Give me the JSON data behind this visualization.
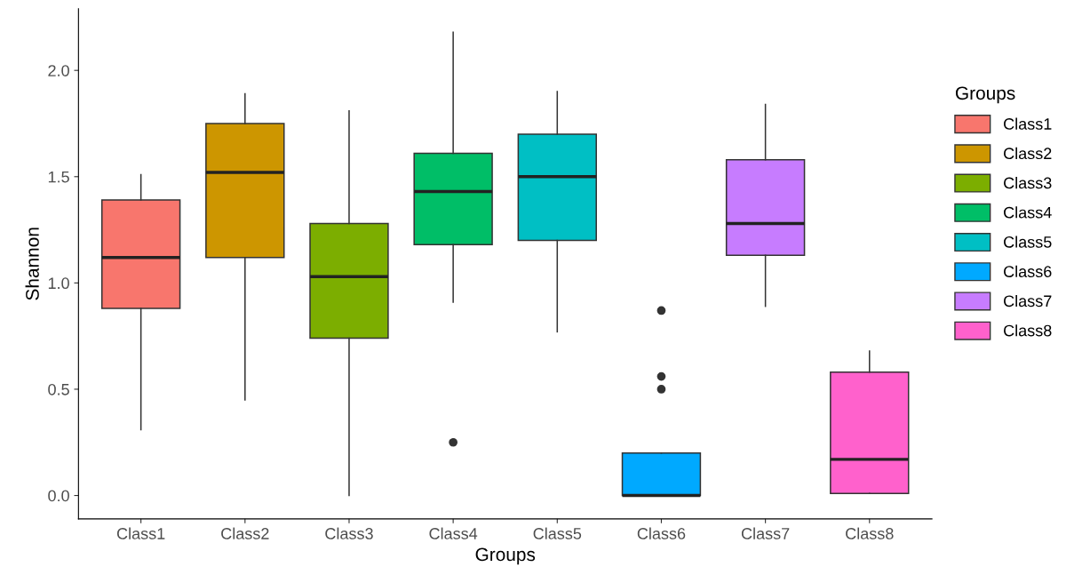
{
  "chart_data": {
    "type": "box",
    "xlabel": "Groups",
    "ylabel": "Shannon",
    "legend_title": "Groups",
    "legend": "right",
    "grid": false,
    "categories": [
      "Class1",
      "Class2",
      "Class3",
      "Class4",
      "Class5",
      "Class6",
      "Class7",
      "Class8"
    ],
    "series": [
      {
        "name": "Class1",
        "color": "#f8766d",
        "boxes": [
          {
            "low": 0.31,
            "q1": 0.88,
            "median": 1.12,
            "q3": 1.39,
            "high": 1.51
          },
          null,
          null,
          null,
          null,
          null,
          null,
          null
        ]
      },
      {
        "name": "Class2",
        "color": "#cd9600",
        "boxes": [
          null,
          {
            "low": 0.45,
            "q1": 1.12,
            "median": 1.52,
            "q3": 1.75,
            "high": 1.89
          },
          null,
          null,
          null,
          null,
          null,
          null
        ]
      },
      {
        "name": "Class3",
        "color": "#7cae00",
        "boxes": [
          null,
          null,
          {
            "low": 0.0,
            "q1": 0.74,
            "median": 1.03,
            "q3": 1.28,
            "high": 1.81
          },
          null,
          null,
          null,
          null,
          null
        ]
      },
      {
        "name": "Class4",
        "color": "#00be67",
        "boxes": [
          null,
          null,
          null,
          {
            "low": 0.91,
            "q1": 1.18,
            "median": 1.43,
            "q3": 1.61,
            "high": 2.18,
            "outliers": [
              0.25
            ]
          },
          null,
          null,
          null,
          null
        ]
      },
      {
        "name": "Class5",
        "color": "#00bfc4",
        "boxes": [
          null,
          null,
          null,
          null,
          {
            "low": 0.77,
            "q1": 1.2,
            "median": 1.5,
            "q3": 1.7,
            "high": 1.9
          },
          null,
          null,
          null
        ]
      },
      {
        "name": "Class6",
        "color": "#00a9ff",
        "boxes": [
          null,
          null,
          null,
          null,
          null,
          {
            "low": 0.0,
            "q1": 0.0,
            "median": 0.0,
            "q3": 0.2,
            "high": 0.2,
            "outliers": [
              0.87,
              0.56,
              0.5
            ]
          },
          null,
          null
        ]
      },
      {
        "name": "Class7",
        "color": "#c77cff",
        "boxes": [
          null,
          null,
          null,
          null,
          null,
          null,
          {
            "low": 0.89,
            "q1": 1.13,
            "median": 1.28,
            "q3": 1.58,
            "high": 1.84
          },
          null
        ]
      },
      {
        "name": "Class8",
        "color": "#ff61cc",
        "boxes": [
          null,
          null,
          null,
          null,
          null,
          null,
          null,
          {
            "low": 0.01,
            "q1": 0.01,
            "median": 0.17,
            "q3": 0.58,
            "high": 0.68
          }
        ]
      }
    ],
    "ylim": [
      -0.11,
      2.29
    ],
    "yticks": [
      {
        "value": 0,
        "label": "0.0"
      },
      0.5,
      {
        "value": 1,
        "label": "1.0"
      },
      1.5,
      {
        "value": 2,
        "label": "2.0"
      }
    ]
  }
}
